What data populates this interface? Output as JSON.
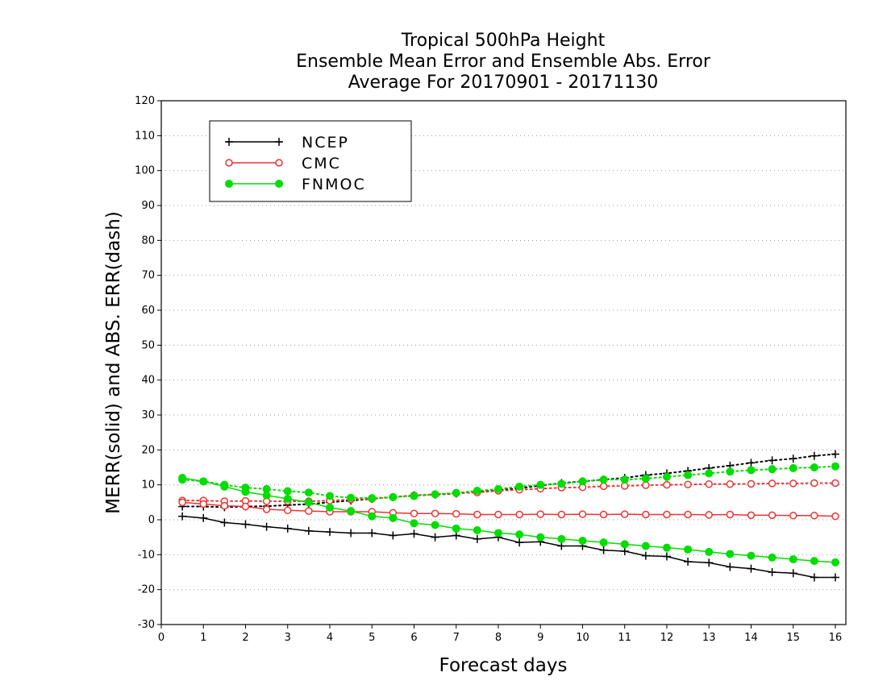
{
  "chart_data": {
    "type": "line",
    "title": [
      "Tropical 500hPa Height",
      "Ensemble Mean Error and Ensemble Abs. Error",
      "Average For 20170901 - 20171130"
    ],
    "xlabel": "Forecast days",
    "ylabel": "MERR(solid) and ABS. ERR(dash)",
    "xlim": [
      0,
      16.25
    ],
    "ylim": [
      -30,
      120
    ],
    "xticks": [
      0,
      1,
      2,
      3,
      4,
      5,
      6,
      7,
      8,
      9,
      10,
      11,
      12,
      13,
      14,
      15,
      16
    ],
    "yticks": [
      -30,
      -20,
      -10,
      0,
      10,
      20,
      30,
      40,
      50,
      60,
      70,
      80,
      90,
      100,
      110,
      120
    ],
    "grid": "horizontal dotted",
    "legend_position": "top-left",
    "x": [
      0.5,
      1,
      1.5,
      2,
      2.5,
      3,
      3.5,
      4,
      4.5,
      5,
      5.5,
      6,
      6.5,
      7,
      7.5,
      8,
      8.5,
      9,
      9.5,
      10,
      10.5,
      11,
      11.5,
      12,
      12.5,
      13,
      13.5,
      14,
      14.5,
      15,
      15.5,
      16
    ],
    "series": [
      {
        "name": "NCEP",
        "color": "#000000",
        "marker": "plus",
        "merr": [
          1.0,
          0.5,
          -0.8,
          -1.3,
          -2.0,
          -2.5,
          -3.2,
          -3.5,
          -3.8,
          -3.8,
          -4.5,
          -4.0,
          -5.0,
          -4.5,
          -5.5,
          -5.0,
          -6.5,
          -6.3,
          -7.5,
          -7.5,
          -8.7,
          -9.0,
          -10.3,
          -10.5,
          -12.0,
          -12.3,
          -13.5,
          -14.0,
          -15.0,
          -15.3,
          -16.5,
          -16.5
        ],
        "abs_err": [
          3.8,
          3.8,
          3.6,
          3.8,
          3.9,
          4.2,
          4.5,
          5.0,
          5.5,
          6.0,
          6.5,
          7.0,
          7.2,
          7.5,
          8.0,
          8.5,
          9.0,
          9.8,
          10.5,
          11.0,
          11.5,
          12.0,
          12.8,
          13.3,
          14.0,
          14.8,
          15.5,
          16.3,
          17.0,
          17.5,
          18.3,
          18.8
        ]
      },
      {
        "name": "CMC",
        "color": "#ee3333",
        "marker": "open-circle",
        "merr": [
          5.0,
          4.5,
          4.0,
          3.8,
          3.0,
          2.7,
          2.5,
          2.3,
          2.3,
          2.3,
          2.0,
          1.8,
          1.8,
          1.7,
          1.5,
          1.5,
          1.5,
          1.6,
          1.5,
          1.6,
          1.5,
          1.6,
          1.5,
          1.5,
          1.5,
          1.4,
          1.5,
          1.3,
          1.3,
          1.2,
          1.2,
          1.0
        ],
        "abs_err": [
          5.5,
          5.5,
          5.3,
          5.4,
          5.3,
          5.3,
          5.3,
          5.5,
          5.8,
          6.0,
          6.5,
          7.0,
          7.3,
          7.6,
          7.8,
          8.3,
          8.6,
          8.9,
          9.2,
          9.3,
          9.6,
          9.7,
          9.9,
          10.0,
          10.1,
          10.2,
          10.2,
          10.3,
          10.4,
          10.4,
          10.5,
          10.5
        ]
      },
      {
        "name": "FNMOC",
        "color": "#00dd00",
        "marker": "filled-circle",
        "merr": [
          12.0,
          11.0,
          9.5,
          8.0,
          7.0,
          6.0,
          5.0,
          3.5,
          2.5,
          1.0,
          0.5,
          -1.0,
          -1.5,
          -2.5,
          -3.0,
          -3.8,
          -4.2,
          -5.0,
          -5.5,
          -6.0,
          -6.5,
          -7.0,
          -7.5,
          -8.0,
          -8.5,
          -9.2,
          -9.8,
          -10.3,
          -10.8,
          -11.3,
          -11.8,
          -12.2
        ],
        "abs_err": [
          11.5,
          11.0,
          10.0,
          9.2,
          8.8,
          8.2,
          7.8,
          6.8,
          6.3,
          6.2,
          6.5,
          6.8,
          7.3,
          7.7,
          8.3,
          8.8,
          9.5,
          10.0,
          10.3,
          11.0,
          11.5,
          11.5,
          11.8,
          12.3,
          12.8,
          13.3,
          13.8,
          14.2,
          14.5,
          14.8,
          15.0,
          15.3
        ]
      }
    ]
  }
}
